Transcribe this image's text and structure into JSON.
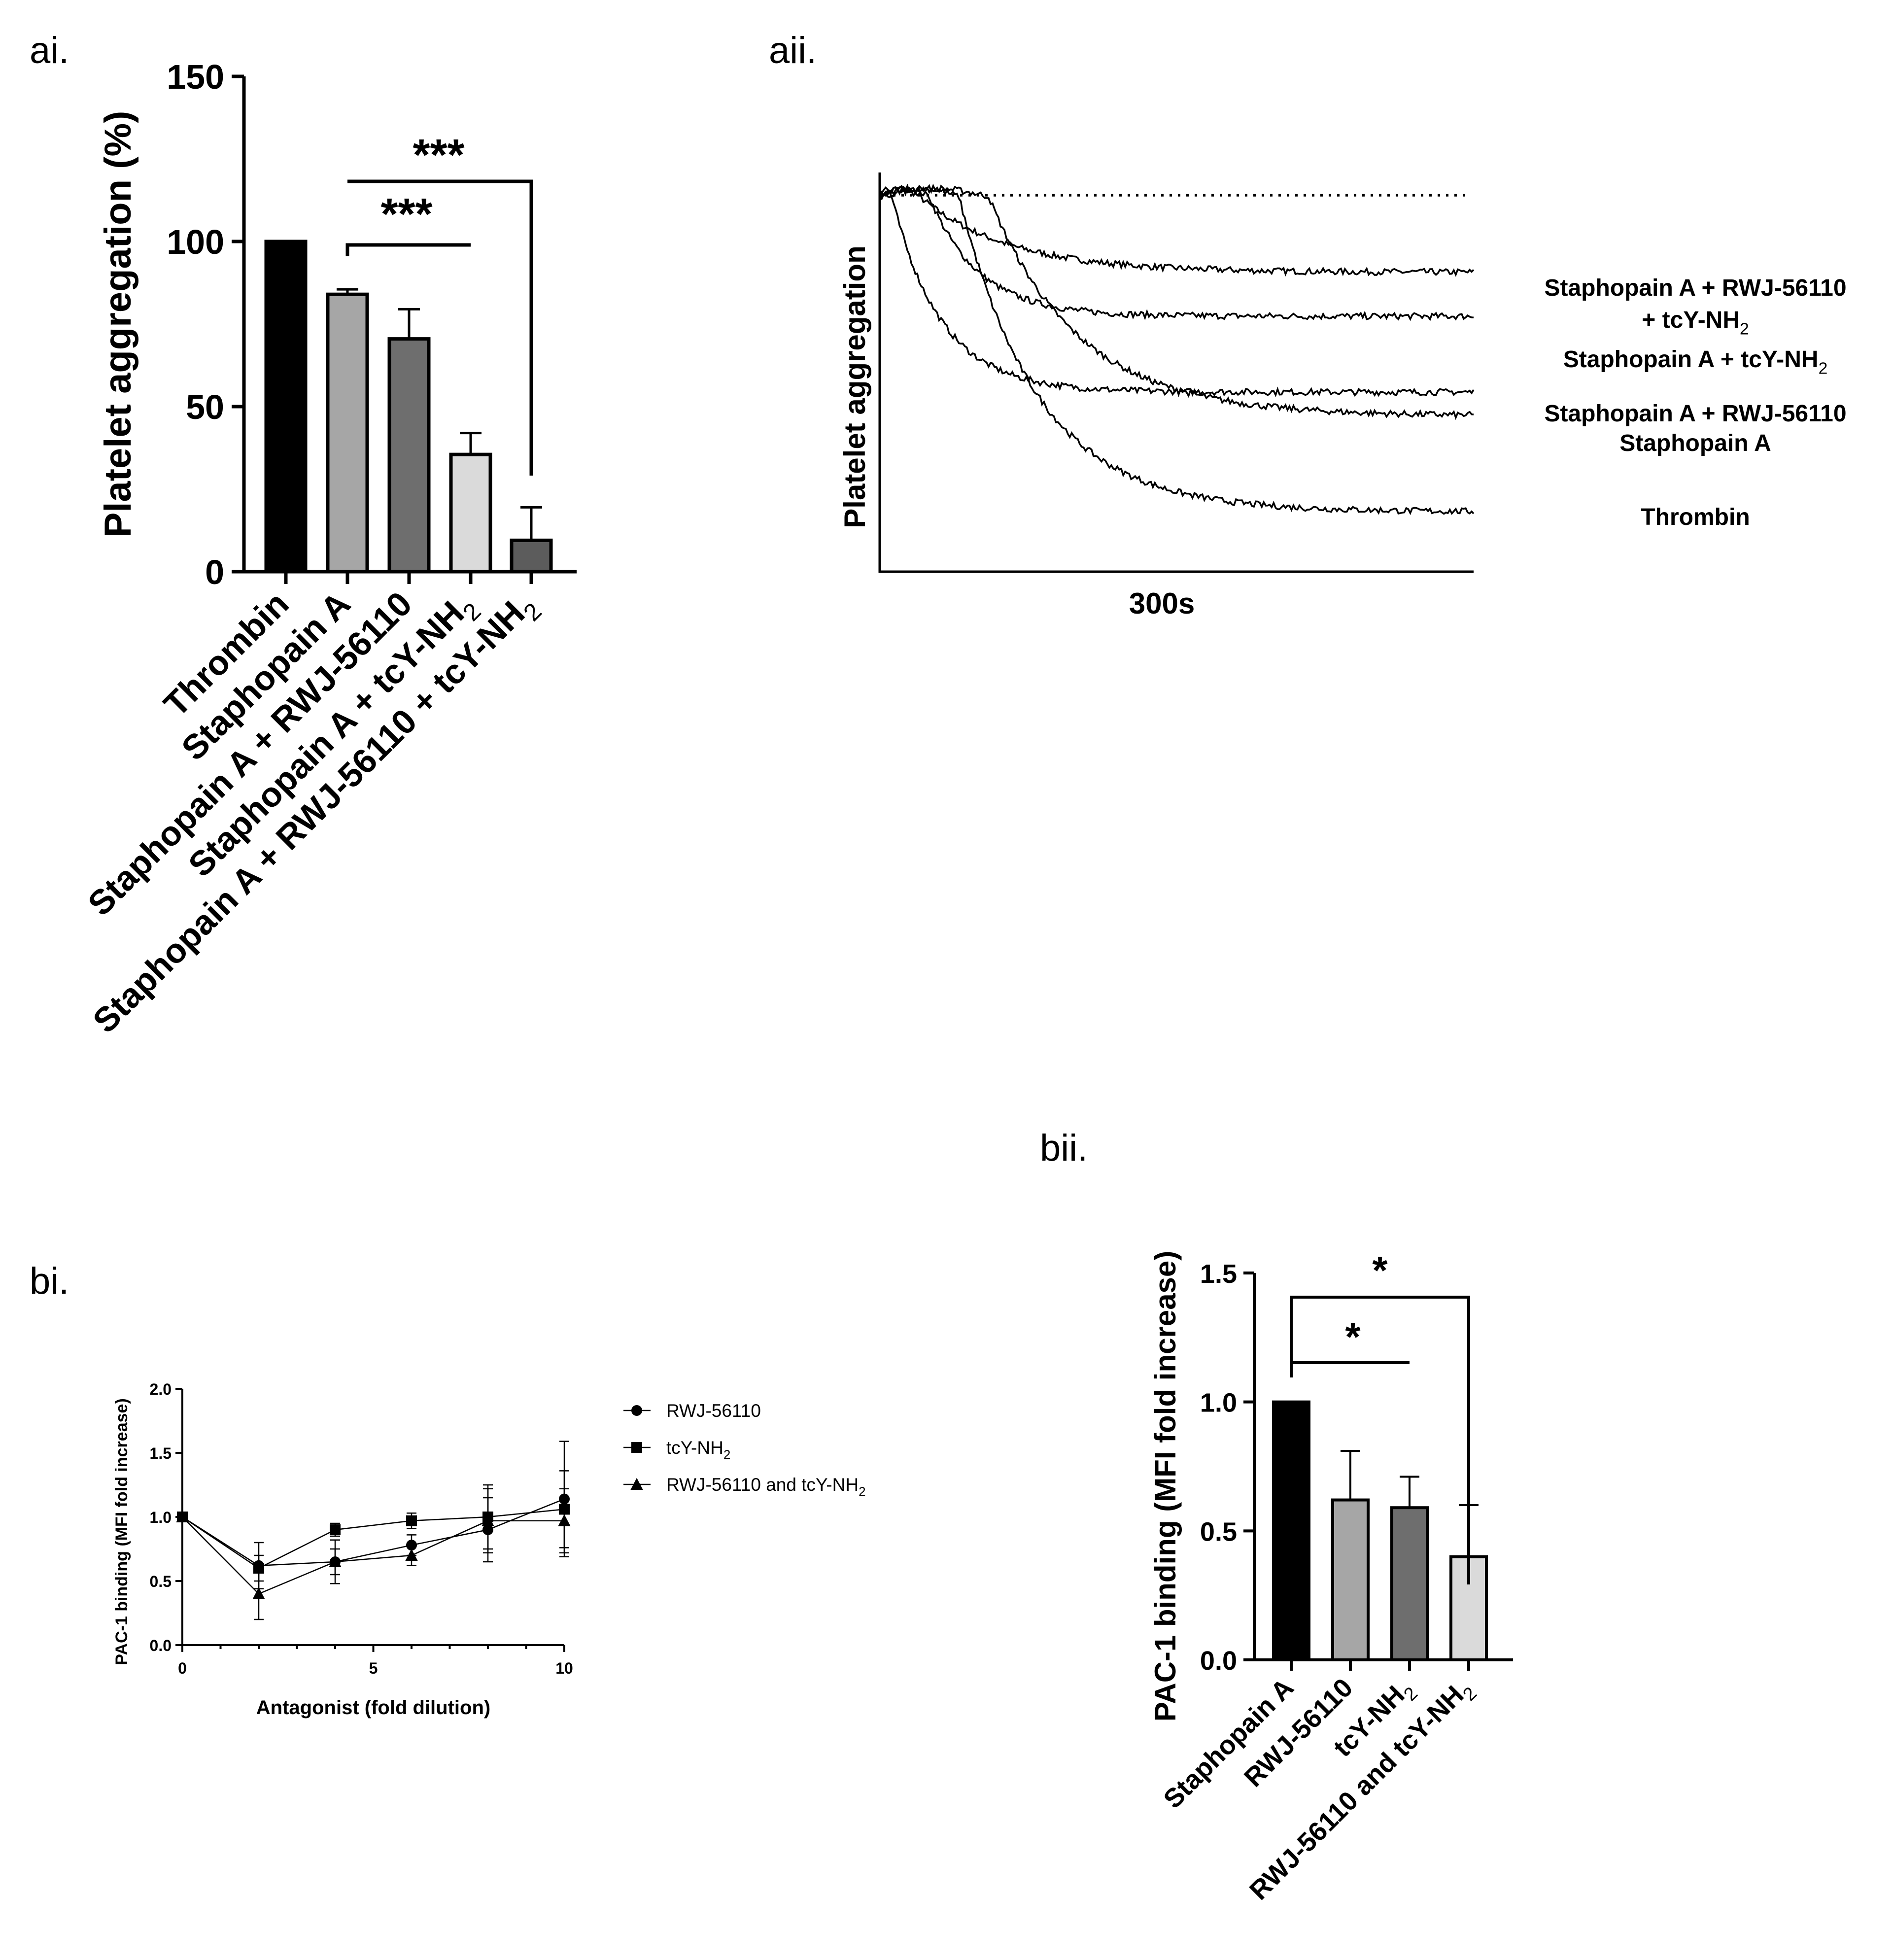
{
  "figure": {
    "panel_labels": {
      "ai": "ai.",
      "aii": "aii.",
      "bi": "bi.",
      "bii": "bii."
    }
  },
  "chart_data": [
    {
      "id": "ai",
      "type": "bar",
      "title": "",
      "xlabel": "",
      "ylabel": "Platelet aggregation (%)",
      "ylim": [
        0,
        150
      ],
      "yticks": [
        0,
        50,
        100,
        150
      ],
      "categories": [
        {
          "main": "Thrombin",
          "sub": ""
        },
        {
          "main": "Staphopain A",
          "sub": ""
        },
        {
          "main": "Staphopain A + RWJ-56110",
          "sub": ""
        },
        {
          "main": "Staphopain A + tcY-NH",
          "sub": "2"
        },
        {
          "main": "Staphopain A + RWJ-56110 + tcY-NH",
          "sub": "2"
        }
      ],
      "values": [
        100,
        84,
        70.5,
        35.5,
        9.5
      ],
      "errors": [
        0,
        1.5,
        9,
        6.5,
        10
      ],
      "colors": [
        "#000000",
        "#a6a6a6",
        "#6e6e6e",
        "#dadada",
        "#5c5c5c"
      ],
      "significance": [
        {
          "from": 1,
          "to": 3,
          "label": "***"
        },
        {
          "from": 1,
          "to": 4,
          "label": "***"
        }
      ]
    },
    {
      "id": "aii",
      "type": "line",
      "title": "",
      "xlabel": "300s",
      "ylabel": "Platelet aggregation",
      "baseline": "dotted",
      "x_range_s": [
        0,
        300
      ],
      "y_range": [
        0,
        100
      ],
      "series": [
        {
          "name": "Staphopain A + RWJ-56110",
          "name2": "+ tcY-NH",
          "sub": "2",
          "final": 75,
          "tau": 45,
          "lag": 20
        },
        {
          "name": "Staphopain A + tcY-NH",
          "sub": "2",
          "final": 64,
          "tau": 25,
          "lag": 25
        },
        {
          "name": "Staphopain A + RWJ-56110",
          "final": 45,
          "tau": 25,
          "lag": 6
        },
        {
          "name": "Staphopain A",
          "final": 39,
          "tau": 45,
          "lag": 55
        },
        {
          "name": "Thrombin",
          "final": 15,
          "tau": 40,
          "lag": 40
        }
      ],
      "start_level": 98
    },
    {
      "id": "bi",
      "type": "line",
      "title": "",
      "xlabel": "Antagonist (fold dilution)",
      "ylabel": "PAC-1 binding (MFI fold increase)",
      "xlim": [
        0,
        10
      ],
      "ylim": [
        0,
        2
      ],
      "xticks": [
        0,
        5,
        10
      ],
      "yticks": [
        "0.0",
        "0.5",
        "1.0",
        "1.5",
        "2.0"
      ],
      "x": [
        0,
        2,
        4,
        6,
        8,
        10
      ],
      "series": [
        {
          "name": "RWJ-56110",
          "sub": "",
          "marker": "circle",
          "values": [
            1.0,
            0.62,
            0.65,
            0.78,
            0.9,
            1.14
          ],
          "errors": [
            0,
            0.18,
            0.17,
            0.08,
            0.25,
            0.45
          ]
        },
        {
          "name": "tcY-NH",
          "sub": "2",
          "marker": "square",
          "values": [
            1.0,
            0.6,
            0.9,
            0.97,
            1.0,
            1.06
          ],
          "errors": [
            0,
            0.1,
            0.05,
            0.06,
            0.25,
            0.3
          ]
        },
        {
          "name": "RWJ-56110 and tcY-NH",
          "sub": "2",
          "marker": "triangle",
          "values": [
            1.0,
            0.4,
            0.65,
            0.7,
            0.97,
            0.97
          ],
          "errors": [
            0,
            0.2,
            0.1,
            0.08,
            0.25,
            0.25
          ]
        }
      ]
    },
    {
      "id": "bii",
      "type": "bar",
      "title": "",
      "xlabel": "",
      "ylabel": "PAC-1 binding (MFI fold increase)",
      "ylim": [
        0,
        1.5
      ],
      "yticks": [
        "0.0",
        "0.5",
        "1.0",
        "1.5"
      ],
      "categories": [
        {
          "main": "Staphopain A",
          "sub": ""
        },
        {
          "main": "RWJ-56110",
          "sub": ""
        },
        {
          "main": "tcY-NH",
          "sub": "2"
        },
        {
          "main": "RWJ-56110 and tcY-NH",
          "sub": "2"
        }
      ],
      "values": [
        1.0,
        0.62,
        0.59,
        0.4
      ],
      "errors": [
        0,
        0.19,
        0.12,
        0.2
      ],
      "colors": [
        "#000000",
        "#a6a6a6",
        "#6e6e6e",
        "#dadada"
      ],
      "significance": [
        {
          "from": 0,
          "to": 2,
          "label": "*"
        },
        {
          "from": 0,
          "to": 3,
          "label": "*"
        }
      ]
    }
  ]
}
